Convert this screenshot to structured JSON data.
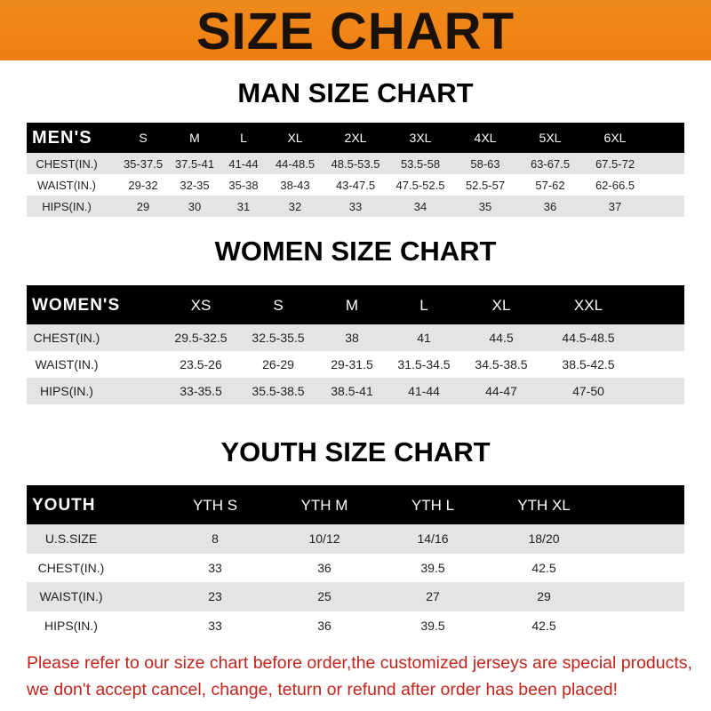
{
  "title": "SIZE CHART",
  "men": {
    "title": "MAN SIZE CHART",
    "header_label": "MEN'S",
    "sizes": [
      "S",
      "M",
      "L",
      "XL",
      "2XL",
      "3XL",
      "4XL",
      "5XL",
      "6XL"
    ],
    "rows": [
      {
        "label": "CHEST(IN.)",
        "values": [
          "35-37.5",
          "37.5-41",
          "41-44",
          "44-48.5",
          "48.5-53.5",
          "53.5-58",
          "58-63",
          "63-67.5",
          "67.5-72"
        ]
      },
      {
        "label": "WAIST(IN.)",
        "values": [
          "29-32",
          "32-35",
          "35-38",
          "38-43",
          "43-47.5",
          "47.5-52.5",
          "52.5-57",
          "57-62",
          "62-66.5"
        ]
      },
      {
        "label": "HIPS(IN.)",
        "values": [
          "29",
          "30",
          "31",
          "32",
          "33",
          "34",
          "35",
          "36",
          "37"
        ]
      }
    ]
  },
  "women": {
    "title": "WOMEN SIZE CHART",
    "header_label": "WOMEN'S",
    "sizes": [
      "XS",
      "S",
      "M",
      "L",
      "XL",
      "XXL"
    ],
    "rows": [
      {
        "label": "CHEST(IN.)",
        "values": [
          "29.5-32.5",
          "32.5-35.5",
          "38",
          "41",
          "44.5",
          "44.5-48.5"
        ]
      },
      {
        "label": "WAIST(IN.)",
        "values": [
          "23.5-26",
          "26-29",
          "29-31.5",
          "31.5-34.5",
          "34.5-38.5",
          "38.5-42.5"
        ]
      },
      {
        "label": "HIPS(IN.)",
        "values": [
          "33-35.5",
          "35.5-38.5",
          "38.5-41",
          "41-44",
          "44-47",
          "47-50"
        ]
      }
    ]
  },
  "youth": {
    "title": "YOUTH SIZE CHART",
    "header_label": "YOUTH",
    "sizes": [
      "YTH S",
      "YTH M",
      "YTH L",
      "YTH XL"
    ],
    "rows": [
      {
        "label": "U.S.SIZE",
        "values": [
          "8",
          "10/12",
          "14/16",
          "18/20"
        ]
      },
      {
        "label": "CHEST(IN.)",
        "values": [
          "33",
          "36",
          "39.5",
          "42.5"
        ]
      },
      {
        "label": "WAIST(IN.)",
        "values": [
          "23",
          "25",
          "27",
          "29"
        ]
      },
      {
        "label": "HIPS(IN.)",
        "values": [
          "33",
          "36",
          "39.5",
          "42.5"
        ]
      }
    ]
  },
  "notice": {
    "line1": "Please refer to our size chart before order,the customized jerseys are special products,",
    "line2": "we don't accept cancel, change, teturn or refund after order has been placed!"
  },
  "colors": {
    "banner": "#ef7f12",
    "header_row": "#000000",
    "stripe": "#e4e4e4",
    "notice": "#c0241c"
  }
}
